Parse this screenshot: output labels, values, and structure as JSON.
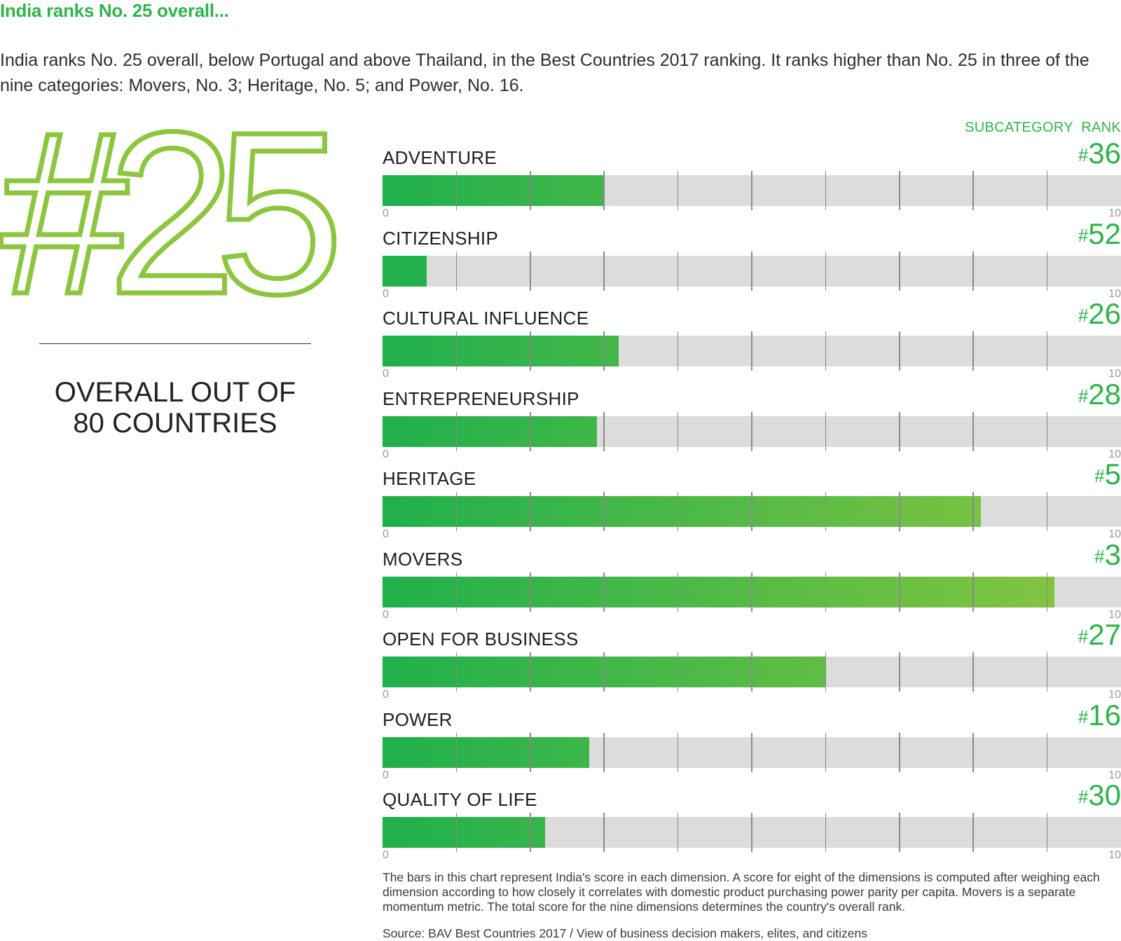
{
  "headline": "India ranks No. 25 overall...",
  "intro": "India ranks No. 25 overall, below Portugal and above Thailand, in the Best Countries 2017 ranking. It ranks higher than No. 25 in three of the nine categories: Movers, No. 3; Heritage, No. 5; and Power, No. 16.",
  "overall": {
    "rank_display": "#25",
    "caption_line1": "OVERALL OUT OF",
    "caption_line2": "80 COUNTRIES",
    "accent_color": "#8cc63f"
  },
  "colors": {
    "accent_green": "#2fb44a",
    "bar_start": "#1fb04c",
    "bar_end": "#8cc63f",
    "track": "#dcdcdd"
  },
  "note": "The bars in this chart represent India's score in each dimension. A score for eight of the dimensions is computed after weighing each dimension according to how closely it correlates with domestic product purchasing power parity per capita. Movers is a separate momentum metric. The total score for the nine dimensions determines the country's overall rank.",
  "source": "Source: BAV Best Countries 2017 / View of business decision makers, elites, and citizens",
  "chart_data": {
    "type": "bar",
    "orientation": "horizontal",
    "rank_header": "SUBCATEGORY  RANK",
    "xlim": [
      0,
      10
    ],
    "tick_min_label": "0",
    "tick_max_label": "10",
    "grid": true,
    "categories": [
      "ADVENTURE",
      "CITIZENSHIP",
      "CULTURAL INFLUENCE",
      "ENTREPRENEURSHIP",
      "HERITAGE",
      "MOVERS",
      "OPEN FOR BUSINESS",
      "POWER",
      "QUALITY OF LIFE"
    ],
    "values": [
      3.0,
      0.6,
      3.2,
      2.9,
      8.1,
      9.1,
      6.0,
      2.8,
      2.2
    ],
    "ranks": [
      "36",
      "52",
      "26",
      "28",
      "5",
      "3",
      "27",
      "16",
      "30"
    ]
  }
}
